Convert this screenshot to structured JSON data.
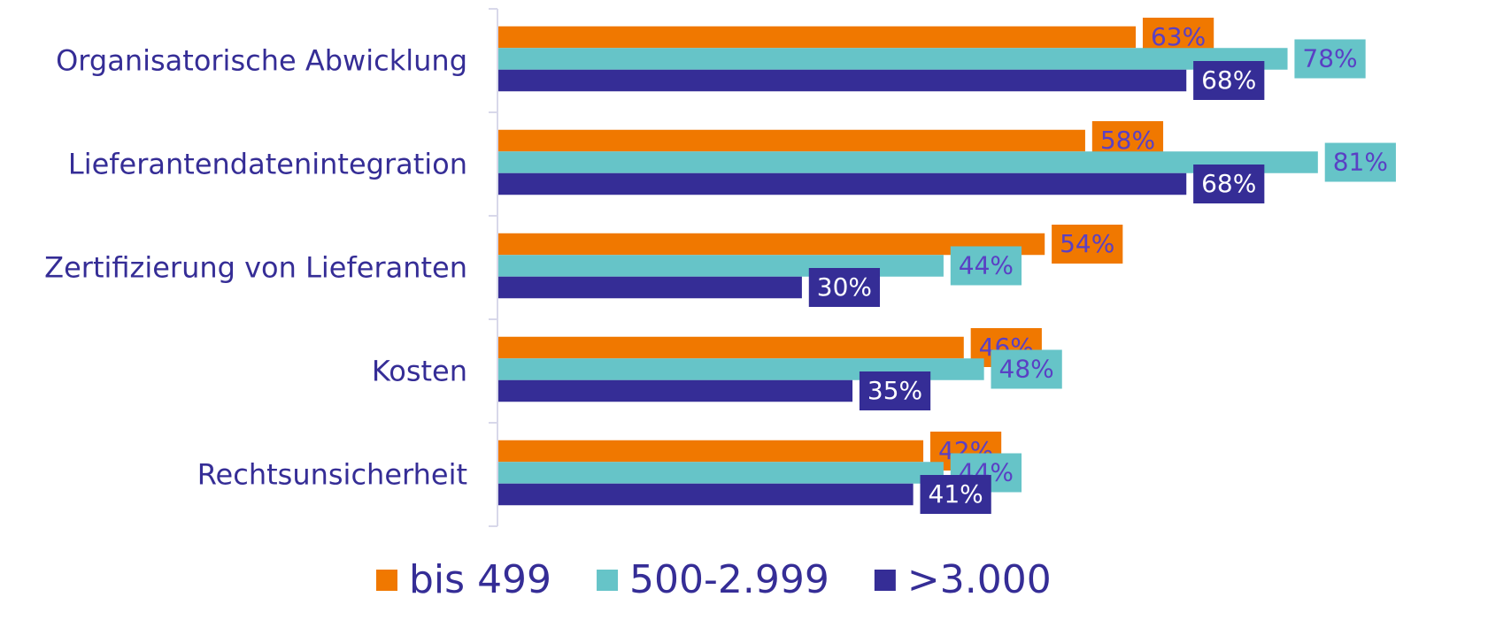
{
  "chart_data": {
    "type": "bar",
    "orientation": "horizontal",
    "categories": [
      "Organisatorische Abwicklung",
      "Lieferantendatenintegration",
      "Zertifizierung von Lieferanten",
      "Kosten",
      "Rechtsunsicherheit"
    ],
    "series": [
      {
        "name": "bis 499",
        "color": "#f07800",
        "label_color": "#5a40c4",
        "values": [
          63,
          58,
          54,
          46,
          42
        ],
        "value_labels": [
          "63%",
          "58%",
          "54%",
          "46%",
          "42%"
        ]
      },
      {
        "name": "500-2.999",
        "color": "#66c4c8",
        "label_color": "#5a40c4",
        "values": [
          78,
          81,
          44,
          48,
          44
        ],
        "value_labels": [
          "78%",
          "81%",
          "44%",
          "48%",
          "44%"
        ]
      },
      {
        "name": ">3.000",
        "color": "#352d96",
        "label_color": "#ffffff",
        "values": [
          68,
          68,
          30,
          35,
          41
        ],
        "value_labels": [
          "68%",
          "68%",
          "30%",
          "35%",
          "41%"
        ]
      }
    ],
    "legend": "bottom"
  }
}
